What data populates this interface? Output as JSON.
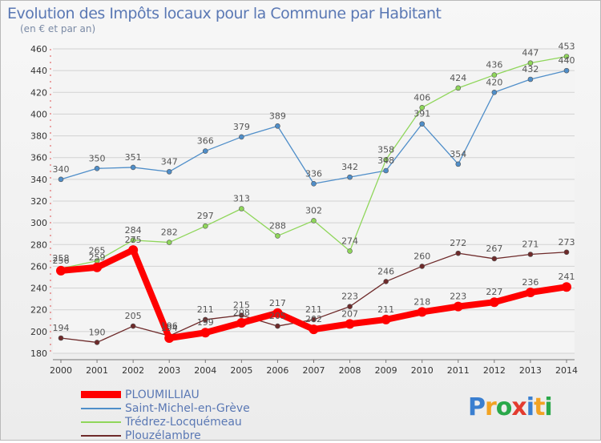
{
  "title": "Evolution des Impôts locaux pour la Commune par Habitant",
  "subtitle": "(en € et par an)",
  "logo": "Proxiti",
  "chart_data": {
    "type": "line",
    "x": [
      2000,
      2001,
      2002,
      2003,
      2004,
      2005,
      2006,
      2007,
      2008,
      2009,
      2010,
      2011,
      2012,
      2013,
      2014
    ],
    "ylim": [
      180,
      460
    ],
    "yticks": [
      180,
      200,
      220,
      240,
      260,
      280,
      300,
      320,
      340,
      360,
      380,
      400,
      420,
      440,
      460
    ],
    "grid": "horizontal",
    "legend_position": "bottom-left",
    "series": [
      {
        "name": "PLOUMILLIAU",
        "color": "#ff0000",
        "values": [
          256,
          259,
          275,
          194,
          199,
          208,
          217,
          202,
          207,
          211,
          218,
          223,
          227,
          236,
          241
        ]
      },
      {
        "name": "Saint-Michel-en-Grève",
        "color": "#4f8ec9",
        "values": [
          340,
          350,
          351,
          347,
          366,
          379,
          389,
          336,
          342,
          348,
          391,
          354,
          420,
          432,
          440
        ]
      },
      {
        "name": "Trédrez-Locquémeau",
        "color": "#8fd65a",
        "values": [
          258,
          265,
          284,
          282,
          297,
          313,
          288,
          302,
          274,
          358,
          406,
          424,
          436,
          447,
          453
        ]
      },
      {
        "name": "Plouzélambre",
        "color": "#6e2a2a",
        "values": [
          194,
          190,
          205,
          196,
          211,
          215,
          205,
          211,
          223,
          246,
          260,
          272,
          267,
          271,
          273
        ]
      }
    ]
  }
}
